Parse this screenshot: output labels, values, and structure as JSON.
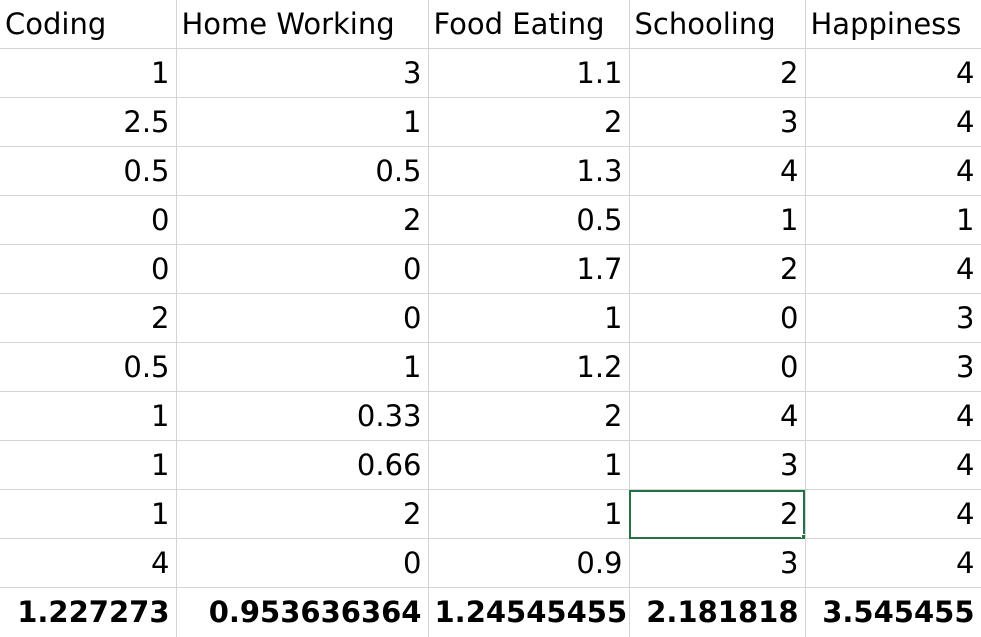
{
  "sheet": {
    "headers": [
      "Coding",
      "Home Working",
      "Food Eating",
      "Schooling",
      "Happiness"
    ],
    "rows": [
      [
        "1",
        "3",
        "1.1",
        "2",
        "4"
      ],
      [
        "2.5",
        "1",
        "2",
        "3",
        "4"
      ],
      [
        "0.5",
        "0.5",
        "1.3",
        "4",
        "4"
      ],
      [
        "0",
        "2",
        "0.5",
        "1",
        "1"
      ],
      [
        "0",
        "0",
        "1.7",
        "2",
        "4"
      ],
      [
        "2",
        "0",
        "1",
        "0",
        "3"
      ],
      [
        "0.5",
        "1",
        "1.2",
        "0",
        "3"
      ],
      [
        "1",
        "0.33",
        "2",
        "4",
        "4"
      ],
      [
        "1",
        "0.66",
        "1",
        "3",
        "4"
      ],
      [
        "1",
        "2",
        "1",
        "2",
        "4"
      ],
      [
        "4",
        "0",
        "0.9",
        "3",
        "4"
      ]
    ],
    "totals": [
      "1.227273",
      "0.953636364",
      "1.24545455",
      "2.181818",
      "3.545455"
    ],
    "selected_cell": {
      "row": 9,
      "col": 3
    },
    "colors": {
      "gridline": "#d4d4d4",
      "selection": "#217346",
      "text": "#000000"
    }
  }
}
